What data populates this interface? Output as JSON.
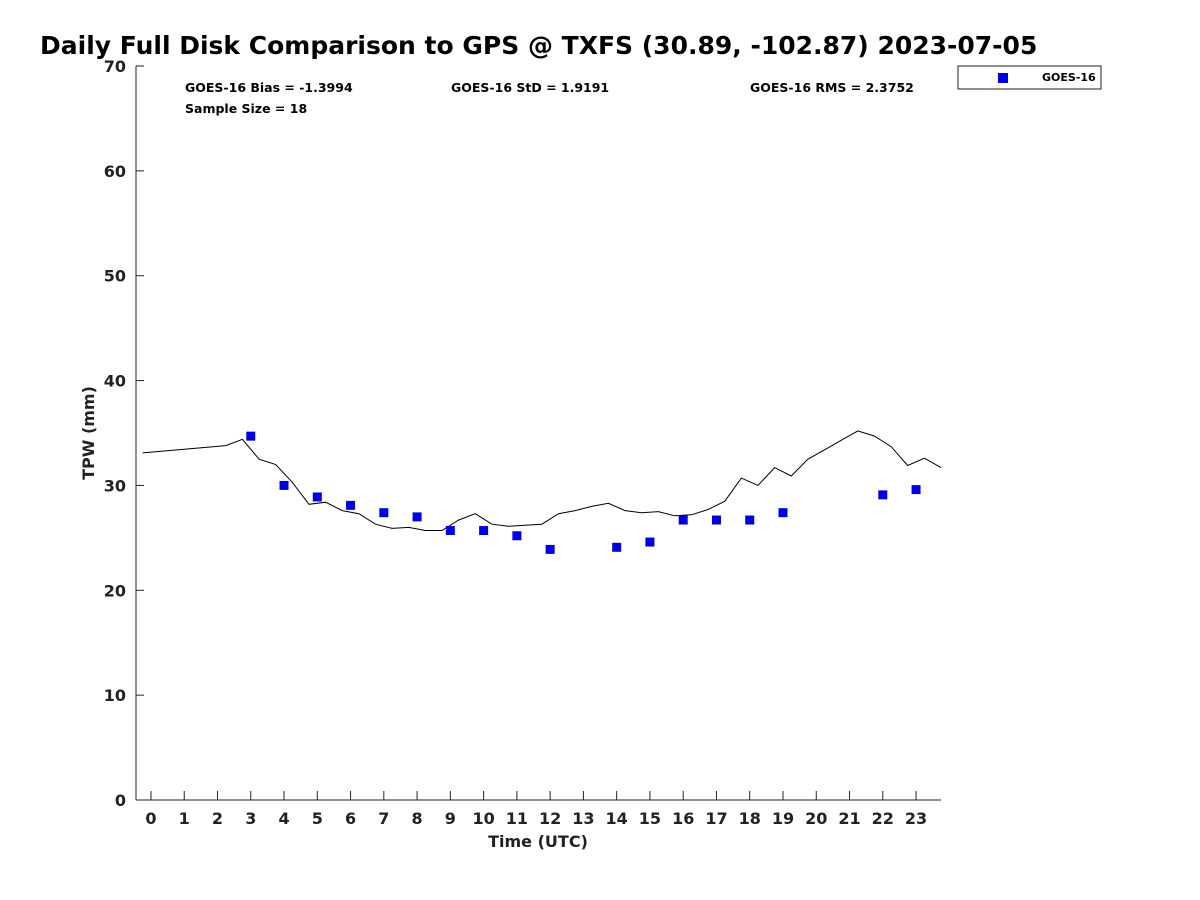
{
  "chart_data": {
    "type": "scatter",
    "title": "Daily Full Disk Comparison to GPS @ TXFS (30.89, -102.87) 2023-07-05",
    "xlabel": "Time (UTC)",
    "ylabel": "TPW (mm)",
    "xlim": [
      -0.45,
      23.75
    ],
    "ylim": [
      0,
      70
    ],
    "x_ticks": [
      0,
      1,
      2,
      3,
      4,
      5,
      6,
      7,
      8,
      9,
      10,
      11,
      12,
      13,
      14,
      15,
      16,
      17,
      18,
      19,
      20,
      21,
      22,
      23
    ],
    "y_ticks": [
      0,
      10,
      20,
      30,
      40,
      50,
      60,
      70
    ],
    "grid": false,
    "legend_position": "top-right-outside",
    "stats": {
      "bias": "GOES-16 Bias = -1.3994",
      "std": "GOES-16 StD = 1.9191",
      "rms": "GOES-16 RMS = 2.3752",
      "sample_size": "Sample Size = 18"
    },
    "series": [
      {
        "name": "GOES-16",
        "kind": "scatter",
        "color": "#0000e0",
        "marker": "square",
        "x": [
          3,
          4,
          5,
          6,
          7,
          8,
          9,
          10,
          11,
          12,
          14,
          15,
          16,
          17,
          18,
          19,
          22,
          23
        ],
        "y": [
          34.7,
          30.0,
          28.9,
          28.1,
          27.4,
          27.0,
          25.7,
          25.7,
          25.2,
          23.9,
          24.1,
          24.6,
          26.7,
          26.7,
          26.7,
          27.4,
          29.1,
          29.6
        ]
      },
      {
        "kind": "line",
        "color": "#000000",
        "x": [
          -0.25,
          2.25,
          2.75,
          3.25,
          3.75,
          4.25,
          4.75,
          5.25,
          5.75,
          6.25,
          6.75,
          7.25,
          7.75,
          8.25,
          8.75,
          9.25,
          9.75,
          10.25,
          10.75,
          11.25,
          11.75,
          12.25,
          12.75,
          13.25,
          13.75,
          14.25,
          14.75,
          15.25,
          15.75,
          16.25,
          16.75,
          17.25,
          17.75,
          18.25,
          18.75,
          19.25,
          19.75,
          20.25,
          20.75,
          21.25,
          21.75,
          22.25,
          22.75,
          23.25,
          23.75
        ],
        "y": [
          33.1,
          33.8,
          34.4,
          32.5,
          32.0,
          30.3,
          28.2,
          28.4,
          27.6,
          27.3,
          26.3,
          25.9,
          26.0,
          25.7,
          25.7,
          26.7,
          27.3,
          26.3,
          26.1,
          26.2,
          26.3,
          27.3,
          27.6,
          28.0,
          28.3,
          27.6,
          27.4,
          27.5,
          27.1,
          27.2,
          27.7,
          28.5,
          30.7,
          30.0,
          31.7,
          30.9,
          32.5,
          33.4,
          34.3,
          35.2,
          34.7,
          33.7,
          31.9,
          32.6,
          31.7
        ]
      }
    ]
  }
}
